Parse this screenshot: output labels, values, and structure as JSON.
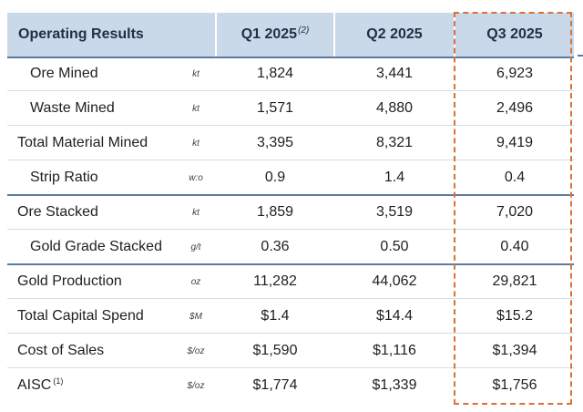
{
  "header": {
    "title": "Operating Results",
    "columns": [
      {
        "label": "Q1 2025",
        "note": "(2)"
      },
      {
        "label": "Q2 2025",
        "note": ""
      },
      {
        "label": "Q3 2025",
        "note": ""
      }
    ]
  },
  "rows": [
    {
      "label": "Ore Mined",
      "note": "",
      "unit": "kt",
      "q1": "1,824",
      "q2": "3,441",
      "q3": "6,923"
    },
    {
      "label": "Waste Mined",
      "note": "",
      "unit": "kt",
      "q1": "1,571",
      "q2": "4,880",
      "q3": "2,496"
    },
    {
      "label": "Total Material Mined",
      "note": "",
      "unit": "kt",
      "q1": "3,395",
      "q2": "8,321",
      "q3": "9,419"
    },
    {
      "label": "Strip Ratio",
      "note": "",
      "unit": "w:o",
      "q1": "0.9",
      "q2": "1.4",
      "q3": "0.4"
    },
    {
      "label": "Ore Stacked",
      "note": "",
      "unit": "kt",
      "q1": "1,859",
      "q2": "3,519",
      "q3": "7,020"
    },
    {
      "label": "Gold Grade Stacked",
      "note": "",
      "unit": "g/t",
      "q1": "0.36",
      "q2": "0.50",
      "q3": "0.40"
    },
    {
      "label": "Gold Production",
      "note": "",
      "unit": "oz",
      "q1": "11,282",
      "q2": "44,062",
      "q3": "29,821"
    },
    {
      "label": "Total Capital Spend",
      "note": "",
      "unit": "$M",
      "q1": "$1.4",
      "q2": "$14.4",
      "q3": "$15.2"
    },
    {
      "label": "Cost of Sales",
      "note": "",
      "unit": "$/oz",
      "q1": "$1,590",
      "q2": "$1,116",
      "q3": "$1,394"
    },
    {
      "label": "AISC",
      "note": "(1)",
      "unit": "$/oz",
      "q1": "$1,774",
      "q2": "$1,339",
      "q3": "$1,756"
    }
  ],
  "colors": {
    "header_bg": "#c9d9e9",
    "rule": "#5d7b9f",
    "highlight_border": "#d9723a"
  }
}
